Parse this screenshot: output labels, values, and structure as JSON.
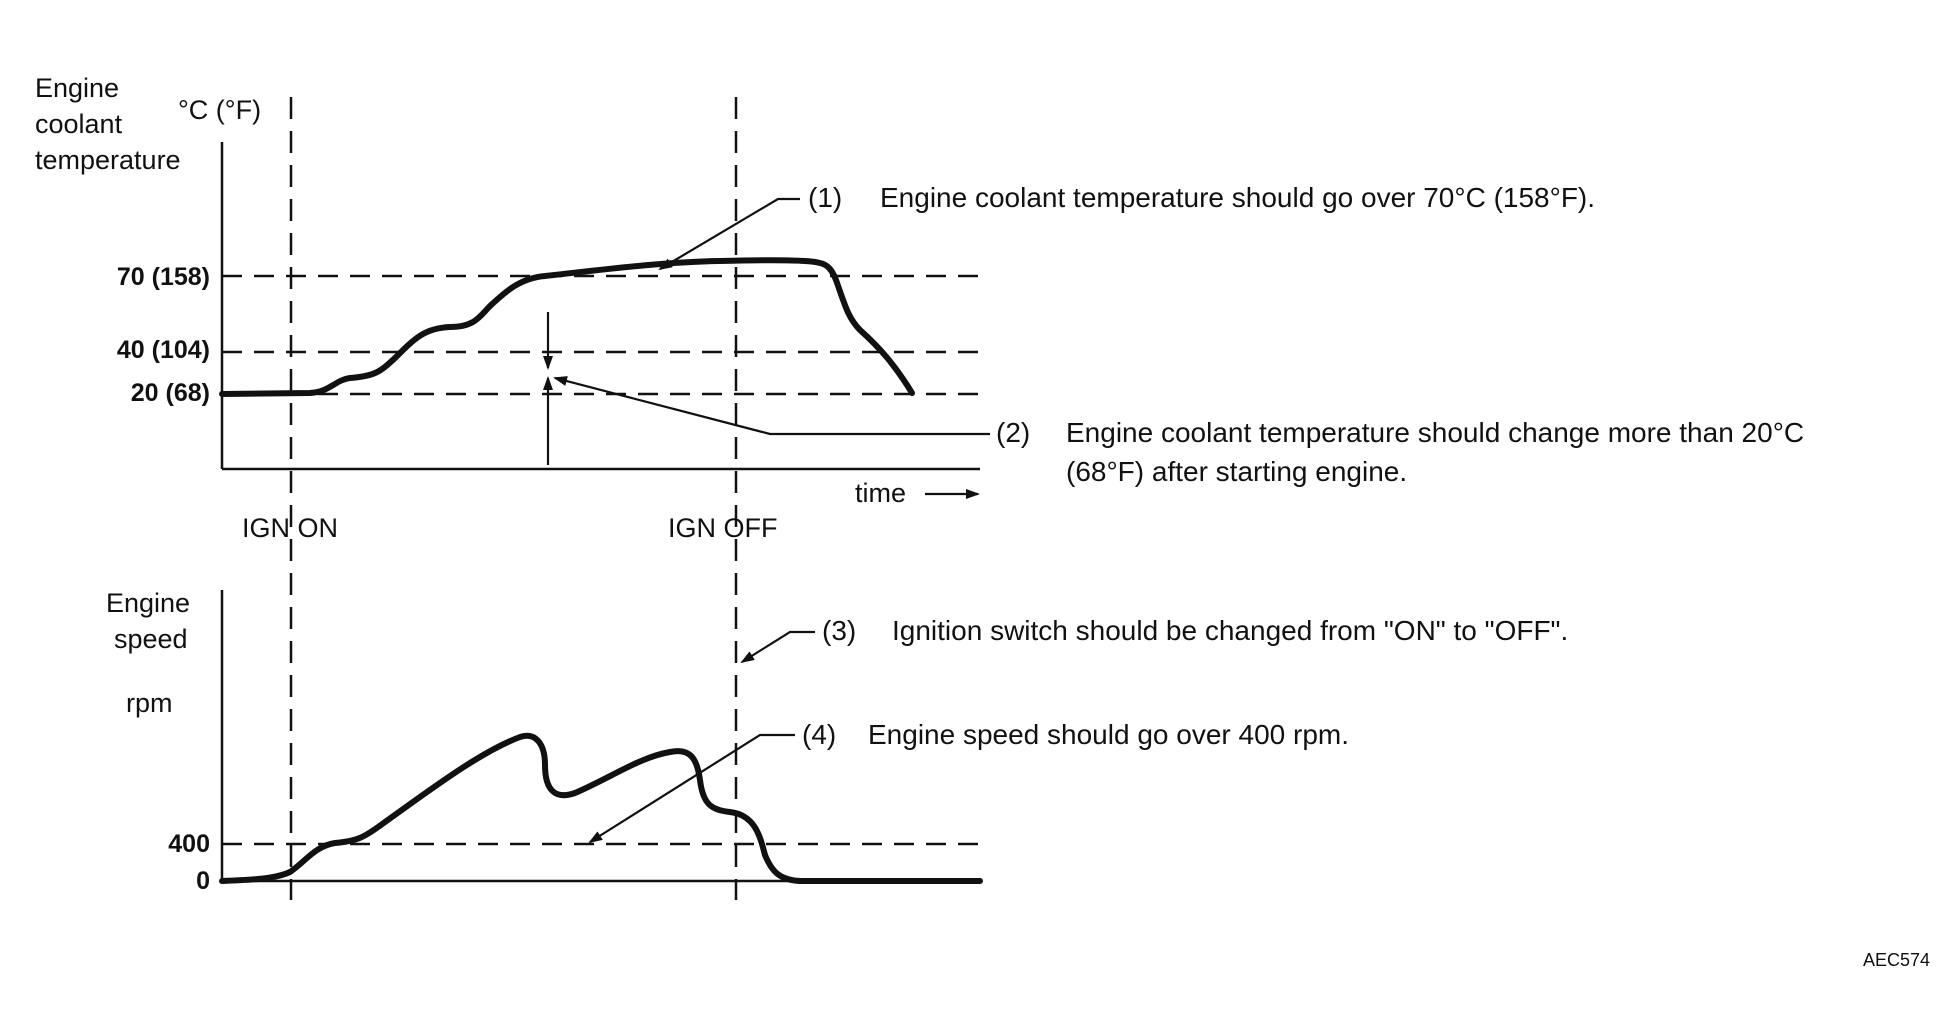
{
  "top_chart": {
    "ylabel_lines": [
      "Engine",
      "coolant",
      "temperature"
    ],
    "unit": "°C (°F)",
    "ticks": [
      {
        "value": 70,
        "label": "70 (158)"
      },
      {
        "value": 40,
        "label": "40 (104)"
      },
      {
        "value": 20,
        "label": "20 (68)"
      }
    ],
    "xlabel": "time"
  },
  "bottom_chart": {
    "ylabel_lines": [
      "Engine",
      "speed"
    ],
    "unit": "rpm",
    "ticks": [
      {
        "value": 400,
        "label": "400"
      },
      {
        "value": 0,
        "label": "0"
      }
    ]
  },
  "events": {
    "ign_on": "IGN ON",
    "ign_off": "IGN OFF"
  },
  "notes": {
    "n1": {
      "num": "(1)",
      "text": "Engine coolant temperature should go over 70°C (158°F)."
    },
    "n2": {
      "num": "(2)",
      "line1": "Engine coolant temperature should change more than 20°C",
      "line2": "(68°F) after starting engine."
    },
    "n3": {
      "num": "(3)",
      "text": "Ignition switch should be changed from \"ON\" to \"OFF\"."
    },
    "n4": {
      "num": "(4)",
      "text": "Engine speed should go over 400 rpm."
    }
  },
  "figure_ref": "AEC574"
}
